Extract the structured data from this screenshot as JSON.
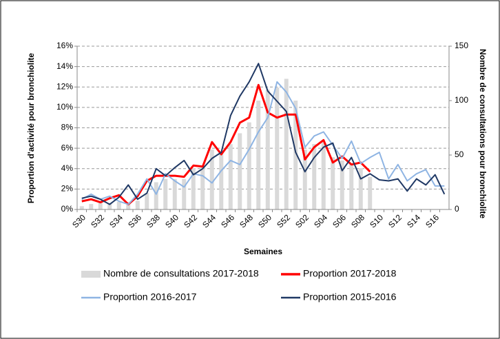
{
  "chart_data": {
    "type": "combo",
    "y_label": "Proportion d'activité pour bronchiolite",
    "x_label": "Semaines",
    "y2_label": "Nombre de consultations pour bronchiolite",
    "categories": [
      "S30",
      null,
      "S32",
      null,
      "S34",
      null,
      "S36",
      null,
      "S38",
      null,
      "S40",
      null,
      "S42",
      null,
      "S44",
      null,
      "S46",
      null,
      "S48",
      null,
      "S50",
      null,
      "S52",
      null,
      "S02",
      null,
      "S04",
      null,
      "S06",
      null,
      "S08",
      null,
      "S10",
      null,
      "S12",
      null,
      "S14",
      null,
      "S16",
      null
    ],
    "ylim": [
      0,
      16
    ],
    "yticks": [
      {
        "value": 0,
        "label": "0%"
      },
      {
        "value": 2,
        "label": "2%"
      },
      {
        "value": 4,
        "label": "4%"
      },
      {
        "value": 6,
        "label": "6%"
      },
      {
        "value": 8,
        "label": "8%"
      },
      {
        "value": 10,
        "label": "10%"
      },
      {
        "value": 12,
        "label": "12%"
      },
      {
        "value": 14,
        "label": "14%"
      },
      {
        "value": 16,
        "label": "16%"
      }
    ],
    "y2lim": [
      0,
      150
    ],
    "y2ticks": [
      0,
      50,
      100,
      150
    ],
    "grid": true,
    "series": [
      {
        "name": "Nombre de consultations 2017-2018",
        "type": "bar",
        "axis": "y2",
        "color": "#d9d9d9",
        "values": [
          3,
          5,
          6,
          6,
          7,
          5,
          8,
          15,
          25,
          28,
          28,
          28,
          38,
          40,
          55,
          52,
          60,
          70,
          80,
          100,
          110,
          112,
          120,
          100,
          55,
          60,
          62,
          48,
          45,
          42,
          38,
          30,
          null,
          null,
          null,
          null,
          null,
          null,
          null,
          null
        ]
      },
      {
        "name": "Proportion 2017-2018",
        "type": "line",
        "color": "#ff0000",
        "width": 3,
        "values": [
          0.8,
          1.0,
          0.7,
          1.1,
          1.4,
          0.5,
          1.3,
          2.8,
          3.3,
          3.3,
          3.3,
          3.2,
          4.3,
          4.2,
          6.6,
          5.4,
          6.6,
          8.5,
          9.0,
          12.2,
          9.5,
          9.0,
          9.3,
          9.3,
          4.9,
          6.1,
          6.8,
          4.6,
          5.2,
          4.4,
          4.6,
          3.7,
          null,
          null,
          null,
          null,
          null,
          null,
          null,
          null
        ]
      },
      {
        "name": "Proportion 2016-2017",
        "type": "line",
        "color": "#8eb4e3",
        "width": 2,
        "values": [
          1.0,
          1.5,
          1.0,
          1.3,
          0.8,
          0.5,
          1.5,
          3.0,
          1.5,
          3.5,
          2.8,
          2.2,
          3.5,
          3.3,
          2.6,
          3.8,
          4.8,
          4.4,
          5.9,
          7.6,
          9.0,
          12.5,
          11.5,
          9.9,
          6.1,
          7.2,
          7.6,
          6.3,
          5.0,
          6.7,
          4.5,
          5.1,
          5.6,
          3.0,
          4.4,
          2.8,
          3.5,
          3.9,
          2.3,
          2.3
        ]
      },
      {
        "name": "Proportion 2015-2016",
        "type": "line",
        "color": "#1f3864",
        "width": 2,
        "values": [
          1.1,
          1.3,
          1.0,
          0.5,
          1.2,
          2.4,
          1.0,
          1.6,
          4.0,
          3.3,
          4.1,
          4.8,
          3.4,
          4.0,
          5.0,
          5.6,
          9.2,
          11.1,
          12.5,
          14.3,
          11.6,
          10.6,
          9.6,
          5.6,
          3.7,
          5.1,
          6.1,
          6.5,
          3.8,
          5.1,
          3.0,
          3.5,
          2.9,
          2.8,
          3.0,
          1.8,
          3.0,
          2.4,
          3.4,
          1.5
        ]
      }
    ]
  }
}
